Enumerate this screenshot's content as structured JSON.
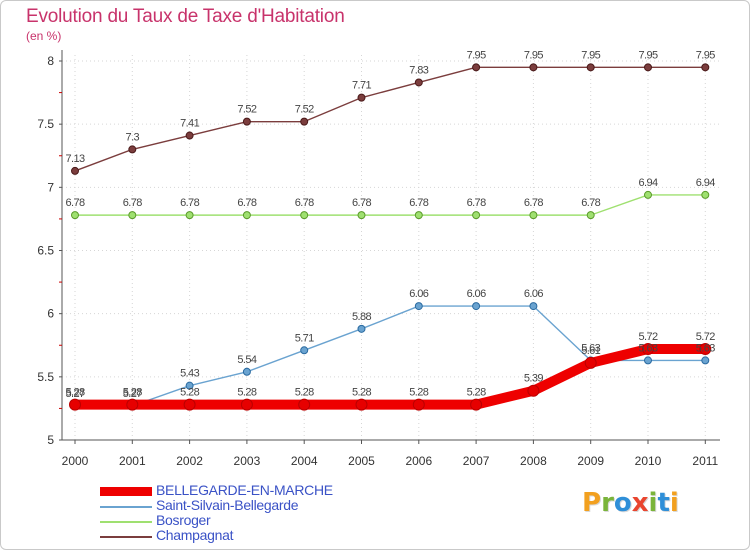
{
  "chart_data": {
    "type": "line",
    "title": "Evolution du Taux de Taxe d'Habitation",
    "subtitle": "(en %)",
    "xlabel": "",
    "ylabel": "",
    "x": [
      "2000",
      "2001",
      "2002",
      "2003",
      "2004",
      "2005",
      "2006",
      "2007",
      "2008",
      "2009",
      "2010",
      "2011"
    ],
    "ylim": [
      5,
      8
    ],
    "yticks": [
      "5",
      "5.5",
      "6",
      "6.5",
      "7",
      "7.5",
      "8"
    ],
    "ytick_values": [
      5,
      5.5,
      6,
      6.5,
      7,
      7.5,
      8
    ],
    "grid": true,
    "series": [
      {
        "name": "BELLEGARDE-EN-MARCHE",
        "color": "#ee0000",
        "values": [
          5.28,
          5.28,
          5.28,
          5.28,
          5.28,
          5.28,
          5.28,
          5.28,
          5.39,
          5.61,
          5.72,
          5.72
        ],
        "labels": [
          "5.28",
          "5.28",
          "5.28",
          "5.28",
          "5.28",
          "5.28",
          "5.28",
          "5.28",
          "5.39",
          "5.61",
          "5.72",
          "5.72"
        ]
      },
      {
        "name": "Saint-Silvain-Bellegarde",
        "color": "#6aa3d0",
        "values": [
          5.27,
          5.27,
          5.43,
          5.54,
          5.71,
          5.88,
          6.06,
          6.06,
          6.06,
          5.63,
          5.63,
          5.63
        ],
        "labels": [
          "5.27",
          "5.27",
          "5.43",
          "5.54",
          "5.71",
          "5.88",
          "6.06",
          "6.06",
          "6.06",
          "5.63",
          "5.63",
          "5.63"
        ]
      },
      {
        "name": "Bosroger",
        "color": "#9fe070",
        "values": [
          6.78,
          6.78,
          6.78,
          6.78,
          6.78,
          6.78,
          6.78,
          6.78,
          6.78,
          6.78,
          6.94,
          6.94
        ],
        "labels": [
          "6.78",
          "6.78",
          "6.78",
          "6.78",
          "6.78",
          "6.78",
          "6.78",
          "6.78",
          "6.78",
          "6.78",
          "6.94",
          "6.94"
        ]
      },
      {
        "name": "Champagnat",
        "color": "#7b3d3d",
        "values": [
          7.13,
          7.3,
          7.41,
          7.52,
          7.52,
          7.71,
          7.83,
          7.95,
          7.95,
          7.95,
          7.95,
          7.95
        ],
        "labels": [
          "7.13",
          "7.3",
          "7.41",
          "7.52",
          "7.52",
          "7.71",
          "7.83",
          "7.95",
          "7.95",
          "7.95",
          "7.95",
          "7.95"
        ]
      }
    ]
  },
  "logo": {
    "letters": [
      {
        "ch": "P",
        "color": "#f2a01f"
      },
      {
        "ch": "r",
        "color": "#7ab43a"
      },
      {
        "ch": "o",
        "color": "#2f8fd8"
      },
      {
        "ch": "x",
        "color": "#e9452f"
      },
      {
        "ch": "i",
        "color": "#7ab43a"
      },
      {
        "ch": "t",
        "color": "#2f8fd8"
      },
      {
        "ch": "i",
        "color": "#f2a01f"
      }
    ]
  }
}
